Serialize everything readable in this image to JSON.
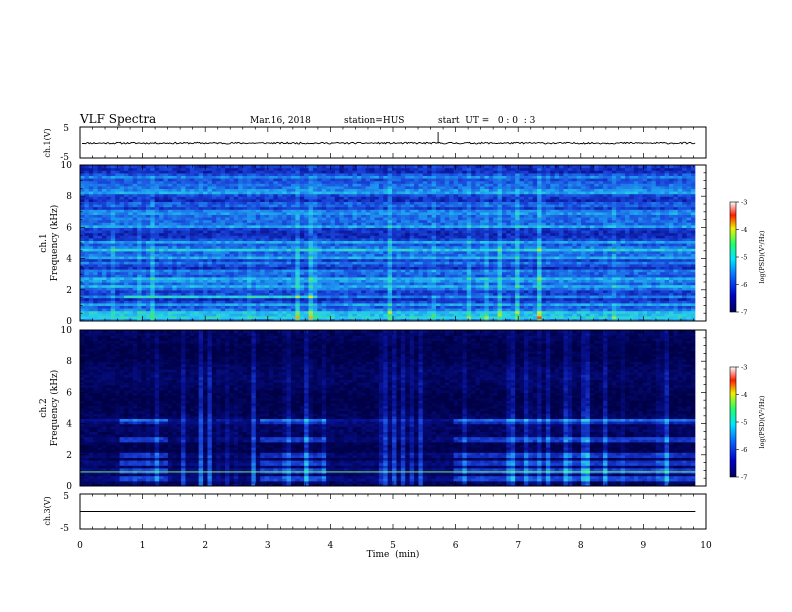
{
  "header": {
    "title": "VLF Spectra",
    "date": "Mar.16, 2018",
    "station": "station=HUS",
    "start": "start  UT =   0 : 0  : 3"
  },
  "chart_data": [
    {
      "type": "line",
      "panel": "ch1-waveform",
      "ylabel": "ch.1(V)",
      "yticks": [
        "5",
        "-5"
      ],
      "ylim": [
        -5,
        5
      ],
      "xlim": [
        0,
        10
      ],
      "end_min": 9.83,
      "baseline_v": -0.2,
      "spike": {
        "x_min": 5.72,
        "peak_v": 0.9
      }
    },
    {
      "type": "heatmap",
      "panel": "ch1-spectrogram",
      "ylabel_top": "ch.1",
      "ylabel": "Frequency (kHz)",
      "yticks": [
        "0",
        "2",
        "4",
        "6",
        "8",
        "10"
      ],
      "ylim": [
        0,
        10
      ],
      "xlim": [
        0,
        10
      ],
      "end_min": 9.83,
      "colorbar": {
        "label": "log(PSD)(V²/Hz)",
        "range": [
          -7,
          -3
        ],
        "ticks": [
          "-3",
          "-4",
          "-5",
          "-6",
          "-7"
        ]
      },
      "bands_khz": [
        0.3,
        0.6,
        1.1,
        1.6,
        2.2,
        2.7,
        3.2,
        3.7,
        4.1,
        4.6,
        5.1,
        6.1,
        7.0,
        7.5,
        8.3,
        9.3
      ],
      "strong_bands_khz": [
        1.6,
        4.3
      ]
    },
    {
      "type": "heatmap",
      "panel": "ch2-spectrogram",
      "ylabel_top": "ch.2",
      "ylabel": "Frequency (kHz)",
      "yticks": [
        "0",
        "2",
        "4",
        "6",
        "8",
        "10"
      ],
      "ylim": [
        0,
        10
      ],
      "xlim": [
        0,
        10
      ],
      "end_min": 9.83,
      "colorbar": {
        "label": "log(PSD)(V²/Hz)",
        "range": [
          -7,
          -3
        ],
        "ticks": [
          "-3",
          "-4",
          "-5",
          "-6",
          "-7"
        ]
      },
      "bands_khz": [
        0.5,
        1.0,
        1.5,
        2.0,
        3.0,
        4.2
      ],
      "line_khz": 0.9
    },
    {
      "type": "line",
      "panel": "ch3-waveform",
      "ylabel": "ch.3(V)",
      "yticks": [
        "5",
        "-5"
      ],
      "ylim": [
        -5,
        5
      ],
      "xlim": [
        0,
        10
      ],
      "baseline_v": 0,
      "xlabel": "Time  (min)",
      "xticks": [
        "0",
        "1",
        "2",
        "3",
        "4",
        "5",
        "6",
        "7",
        "8",
        "9",
        "10"
      ]
    }
  ],
  "colors": {
    "deep": "#00005c",
    "mid": "#1e4ed2",
    "cyan": "#27c6e6",
    "green": "#3fe08a",
    "trace": "#000000"
  }
}
